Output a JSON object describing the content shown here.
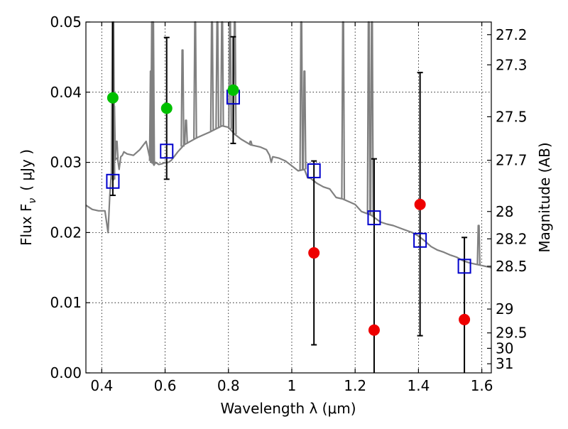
{
  "chart_data": {
    "type": "scatter",
    "xlabel": "Wavelength  λ (μm)",
    "ylabel": "Flux  F",
    "ylabel_subscript": "ν",
    "ylabel_unit": "( μJy )",
    "y2label": "Magnitude (AB)",
    "xlim": [
      0.35,
      1.63
    ],
    "ylim": [
      0.0,
      0.05
    ],
    "grid": true,
    "grid_style": "dotted",
    "x_ticks": [
      {
        "value": 0.4,
        "label": "0.4"
      },
      {
        "value": 0.6,
        "label": "0.6"
      },
      {
        "value": 0.8,
        "label": "0.8"
      },
      {
        "value": 1.0,
        "label": "1"
      },
      {
        "value": 1.2,
        "label": "1.2"
      },
      {
        "value": 1.4,
        "label": "1.4"
      },
      {
        "value": 1.6,
        "label": "1.6"
      }
    ],
    "y_ticks": [
      {
        "value": 0.0,
        "label": "0.00"
      },
      {
        "value": 0.01,
        "label": "0.01"
      },
      {
        "value": 0.02,
        "label": "0.02"
      },
      {
        "value": 0.03,
        "label": "0.03"
      },
      {
        "value": 0.04,
        "label": "0.04"
      },
      {
        "value": 0.05,
        "label": "0.05"
      }
    ],
    "y2_ticks": [
      {
        "flux": 0.0482,
        "label": "27.2"
      },
      {
        "flux": 0.0439,
        "label": "27.3"
      },
      {
        "flux": 0.0365,
        "label": "27.5"
      },
      {
        "flux": 0.0303,
        "label": "27.7"
      },
      {
        "flux": 0.023,
        "label": "28"
      },
      {
        "flux": 0.0191,
        "label": "28.2"
      },
      {
        "flux": 0.0152,
        "label": "28.5"
      },
      {
        "flux": 0.0091,
        "label": "29"
      },
      {
        "flux": 0.0057,
        "label": "29.5"
      },
      {
        "flux": 0.0035,
        "label": "30"
      },
      {
        "flux": 0.0013,
        "label": "31"
      }
    ],
    "series": [
      {
        "kind": "spectrum",
        "color": "#808080",
        "x": [
          0.35,
          0.37,
          0.39,
          0.41,
          0.42,
          0.425,
          0.43,
          0.437,
          0.438,
          0.44,
          0.45,
          0.455,
          0.46,
          0.465,
          0.47,
          0.48,
          0.5,
          0.52,
          0.54,
          0.55,
          0.555,
          0.56,
          0.565,
          0.57,
          0.58,
          0.59,
          0.6,
          0.61,
          0.62,
          0.64,
          0.66,
          0.7,
          0.74,
          0.78,
          0.8,
          0.82,
          0.84,
          0.87,
          0.9,
          0.92,
          0.93,
          0.935,
          0.94,
          0.96,
          0.98,
          1.0,
          1.02,
          1.04,
          1.05,
          1.06,
          1.08,
          1.1,
          1.12,
          1.14,
          1.16,
          1.18,
          1.2,
          1.22,
          1.25,
          1.28,
          1.3,
          1.32,
          1.35,
          1.38,
          1.4,
          1.42,
          1.44,
          1.46,
          1.48,
          1.5,
          1.52,
          1.54,
          1.56,
          1.58,
          1.6,
          1.63
        ],
        "y": [
          0.0239,
          0.0233,
          0.0231,
          0.0231,
          0.02,
          0.025,
          0.0283,
          0.0275,
          0.03,
          0.0305,
          0.0306,
          0.029,
          0.0308,
          0.031,
          0.0315,
          0.0312,
          0.031,
          0.0318,
          0.033,
          0.031,
          0.0302,
          0.03,
          0.0296,
          0.03,
          0.0297,
          0.0298,
          0.03,
          0.03,
          0.0303,
          0.0315,
          0.0325,
          0.0335,
          0.0343,
          0.0352,
          0.035,
          0.034,
          0.0333,
          0.0325,
          0.0322,
          0.0318,
          0.031,
          0.03,
          0.0308,
          0.0306,
          0.0302,
          0.0295,
          0.0288,
          0.029,
          0.0278,
          0.0277,
          0.027,
          0.0265,
          0.0262,
          0.025,
          0.0248,
          0.0244,
          0.024,
          0.023,
          0.0225,
          0.0215,
          0.0212,
          0.021,
          0.0205,
          0.02,
          0.0195,
          0.0188,
          0.018,
          0.0175,
          0.0172,
          0.0168,
          0.0165,
          0.016,
          0.0157,
          0.0155,
          0.0153,
          0.015
        ]
      },
      {
        "kind": "emission_lines",
        "color": "#808080",
        "x": [
          0.4345,
          0.4365,
          0.439,
          0.447,
          0.555,
          0.559,
          0.562,
          0.655,
          0.666,
          0.695,
          0.748,
          0.765,
          0.78,
          0.805,
          0.82,
          0.87,
          1.03,
          1.04,
          1.162,
          1.243,
          1.253,
          1.59
        ],
        "peak": [
          0.05,
          0.05,
          0.038,
          0.033,
          0.043,
          0.05,
          0.05,
          0.046,
          0.036,
          0.05,
          0.05,
          0.05,
          0.05,
          0.05,
          0.05,
          0.033,
          0.05,
          0.043,
          0.05,
          0.05,
          0.05,
          0.021
        ]
      },
      {
        "kind": "model",
        "marker": "square",
        "color": "#0000cc",
        "x": [
          0.435,
          0.605,
          0.815,
          1.07,
          1.26,
          1.405,
          1.545
        ],
        "y": [
          0.0273,
          0.0316,
          0.0393,
          0.0288,
          0.0221,
          0.0189,
          0.0152
        ]
      },
      {
        "kind": "detections",
        "marker": "circle",
        "color": "#00c000",
        "x": [
          0.435,
          0.605,
          0.815
        ],
        "y": [
          0.0392,
          0.0377,
          0.0403
        ]
      },
      {
        "kind": "non_detections",
        "marker": "circle",
        "color": "#ee0000",
        "x": [
          1.07,
          1.26,
          1.405,
          1.545
        ],
        "y": [
          0.0171,
          0.0061,
          0.024,
          0.0076
        ]
      }
    ],
    "error_bars": [
      {
        "x": 0.435,
        "low": 0.0253,
        "high": 0.0505
      },
      {
        "x": 0.605,
        "low": 0.0276,
        "high": 0.0478
      },
      {
        "x": 0.815,
        "low": 0.0327,
        "high": 0.0479
      },
      {
        "x": 1.07,
        "low": 0.004,
        "high": 0.0302
      },
      {
        "x": 1.26,
        "low": 0.0,
        "high": 0.0305
      },
      {
        "x": 1.405,
        "low": 0.0053,
        "high": 0.0428
      },
      {
        "x": 1.545,
        "low": 0.0,
        "high": 0.0193
      }
    ]
  }
}
